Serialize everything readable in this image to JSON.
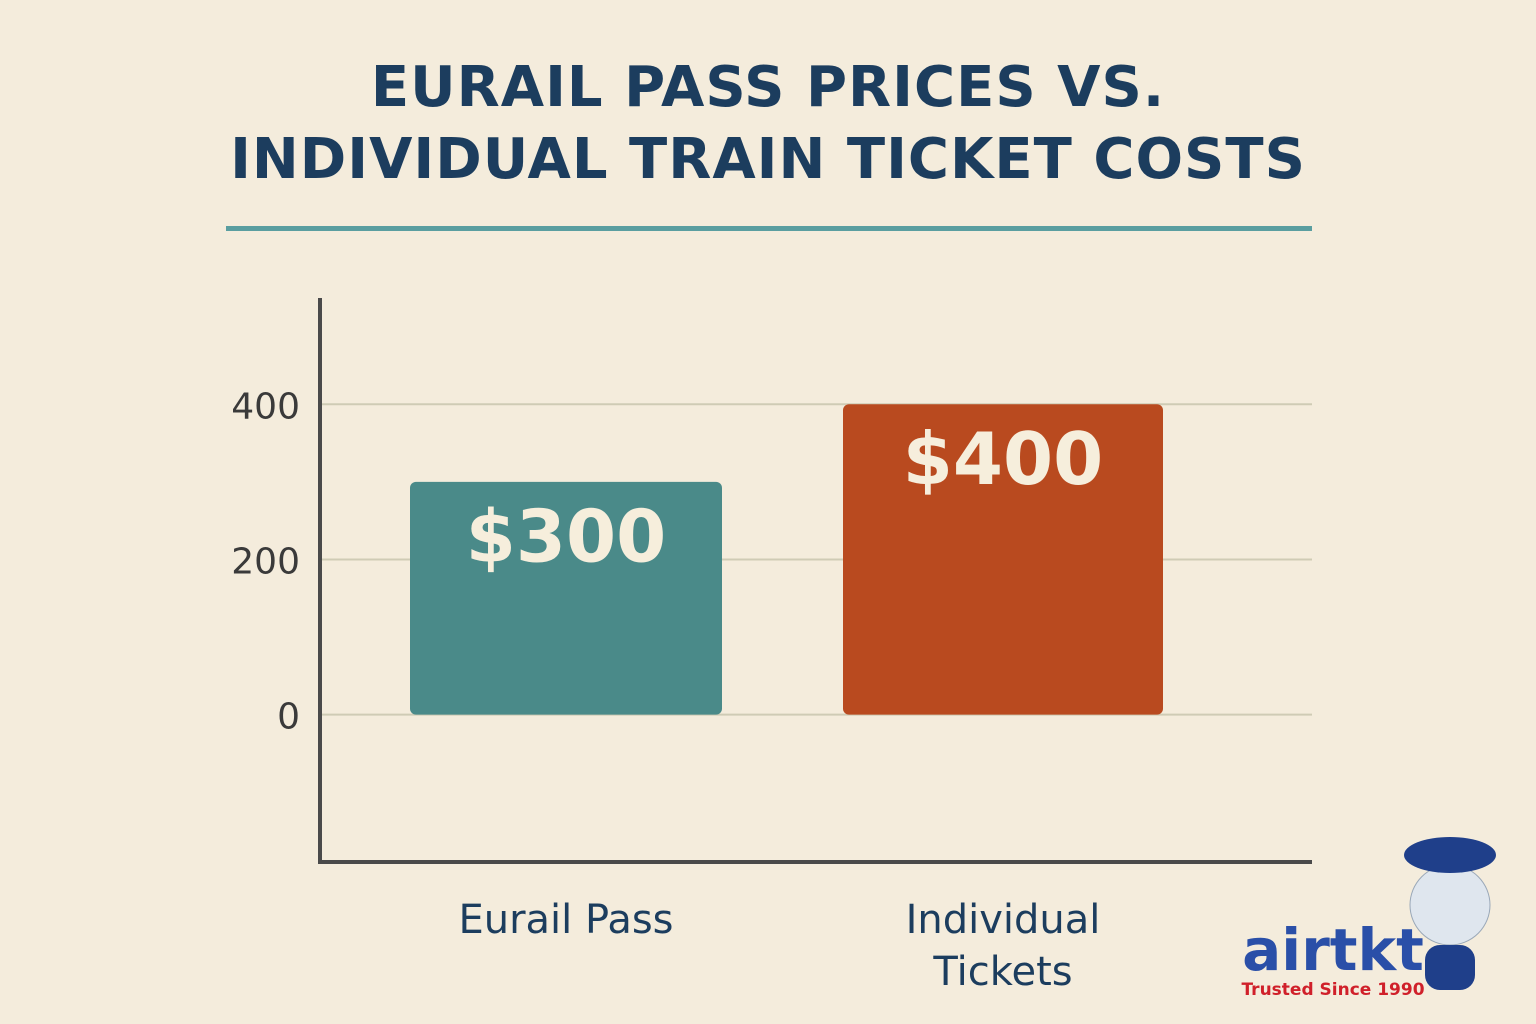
{
  "chart_data": {
    "type": "bar",
    "title": "EURAIL PASS PRICES VS. INDIVIDUAL TRAIN TICKET COSTS",
    "categories": [
      "Eurail Pass",
      "Individual Tickets"
    ],
    "series": [
      {
        "name": "Price",
        "colors": [
          "#4a8a89",
          "#b94a1f"
        ],
        "values": [
          300,
          400
        ],
        "value_labels": [
          "$300",
          "$400"
        ]
      }
    ],
    "ylim": [
      -190,
      537
    ],
    "yticks": [
      0,
      200,
      400
    ],
    "grid": true
  },
  "logo": {
    "name": "airtkt",
    "tagline": "Trusted Since 1990"
  }
}
